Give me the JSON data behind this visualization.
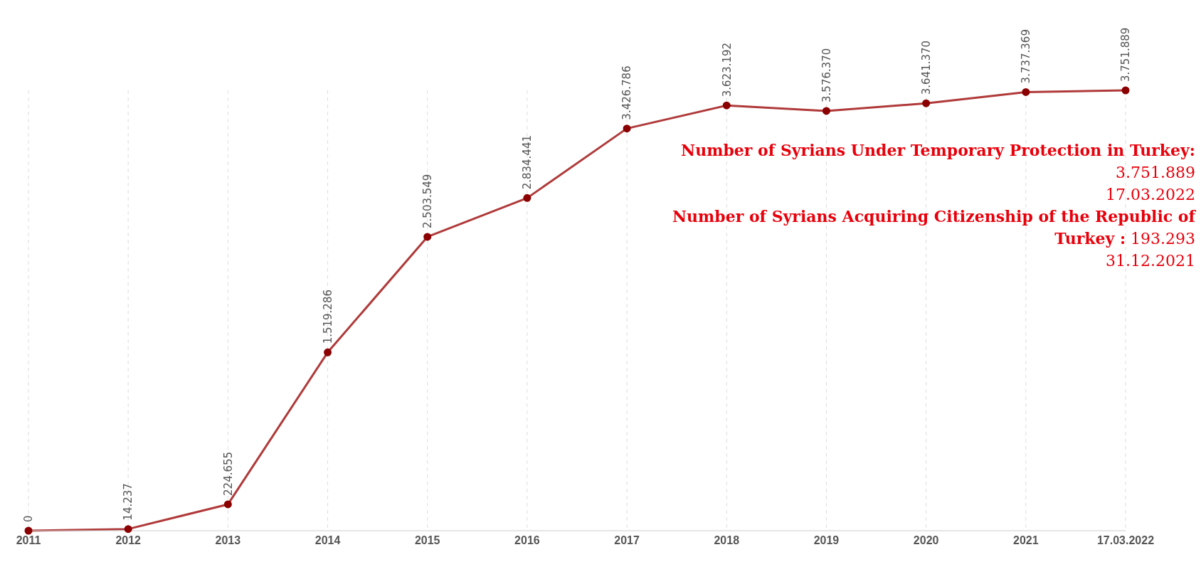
{
  "chart_data": {
    "type": "line",
    "categories": [
      "2011",
      "2012",
      "2013",
      "2014",
      "2015",
      "2016",
      "2017",
      "2018",
      "2019",
      "2020",
      "2021",
      "17.03.2022"
    ],
    "series": [
      {
        "color": "#b03a3a",
        "values": [
          0,
          14237,
          224655,
          1519286,
          2503549,
          2834441,
          3426786,
          3623192,
          3576370,
          3641370,
          3737369,
          3751889
        ],
        "value_labels": [
          "0",
          "14.237",
          "224.655",
          "1.519.286",
          "2.503.549",
          "2.834.441",
          "3.426.786",
          "3.623.192",
          "3.576.370",
          "3.641.370",
          "3.737.369",
          "3.751.889"
        ]
      }
    ],
    "marker": "circle",
    "grid": "x",
    "tick_labels": "x",
    "annotations": [
      "Number of Syrians Under Temporary Protection in Turkey: 3.751.889",
      "17.03.2022",
      "Number of Syrians Acquiring Citizenship of the Republic of Turkey : 193.293",
      "31.12.2021"
    ]
  }
}
